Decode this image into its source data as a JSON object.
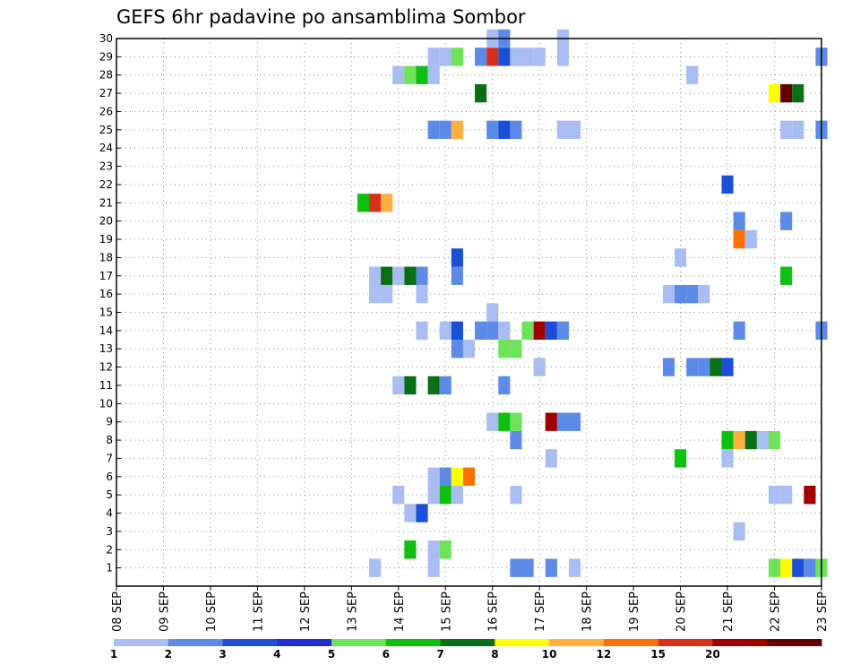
{
  "chart_data": {
    "type": "heatmap",
    "title": "GEFS 6hr padavine po ansamblima Sombor",
    "xlabel": "",
    "ylabel": "",
    "x_ticks": [
      "08 SEP",
      "09 SEP",
      "10 SEP",
      "11 SEP",
      "12 SEP",
      "13 SEP",
      "14 SEP",
      "15 SEP",
      "16 SEP",
      "17 SEP",
      "18 SEP",
      "19 SEP",
      "20 SEP",
      "21 SEP",
      "22 SEP",
      "23 SEP"
    ],
    "y_ticks": [
      "1",
      "2",
      "3",
      "4",
      "5",
      "6",
      "7",
      "8",
      "9",
      "10",
      "11",
      "12",
      "13",
      "14",
      "15",
      "16",
      "17",
      "18",
      "19",
      "20",
      "21",
      "22",
      "23",
      "24",
      "25",
      "26",
      "27",
      "28",
      "29",
      "30"
    ],
    "xlim": [
      0,
      60
    ],
    "ylim": [
      0,
      30
    ],
    "grid": true,
    "colorbar": {
      "levels": [
        1,
        2,
        3,
        4,
        5,
        6,
        7,
        8,
        10,
        12,
        15,
        20
      ],
      "tick_labels": [
        "1",
        "2",
        "3",
        "4",
        "5",
        "6",
        "7",
        "8",
        "10",
        "12",
        "15",
        "20"
      ],
      "colors": [
        "#aabdf3",
        "#5c8ae6",
        "#1a4fd6",
        "#1f2fd0",
        "#6ee35a",
        "#10c010",
        "#0a6e14",
        "#ffff00",
        "#ffb040",
        "#ff7000",
        "#d83018",
        "#a00000",
        "#600000"
      ]
    },
    "cells": [
      [
        27,
        29,
        "#aabdf3"
      ],
      [
        28,
        29,
        "#aabdf3"
      ],
      [
        29,
        29,
        "#6ee35a"
      ],
      [
        31,
        29,
        "#5c8ae6"
      ],
      [
        32,
        29,
        "#d83018"
      ],
      [
        33,
        29,
        "#1a4fd6"
      ],
      [
        34,
        29,
        "#aabdf3"
      ],
      [
        35,
        29,
        "#aabdf3"
      ],
      [
        36,
        29,
        "#aabdf3"
      ],
      [
        38,
        29,
        "#aabdf3"
      ],
      [
        60,
        29,
        "#5c8ae6"
      ],
      [
        32,
        30,
        "#aabdf3"
      ],
      [
        33,
        30,
        "#5c8ae6"
      ],
      [
        38,
        30,
        "#aabdf3"
      ],
      [
        24,
        28,
        "#aabdf3"
      ],
      [
        25,
        28,
        "#6ee35a"
      ],
      [
        26,
        28,
        "#10c010"
      ],
      [
        27,
        28,
        "#aabdf3"
      ],
      [
        49,
        28,
        "#aabdf3"
      ],
      [
        31,
        27,
        "#0a6e14"
      ],
      [
        56,
        27,
        "#ffff00"
      ],
      [
        57,
        27,
        "#600000"
      ],
      [
        58,
        27,
        "#0a6e14"
      ],
      [
        27,
        25,
        "#5c8ae6"
      ],
      [
        28,
        25,
        "#5c8ae6"
      ],
      [
        29,
        25,
        "#ffb040"
      ],
      [
        32,
        25,
        "#5c8ae6"
      ],
      [
        33,
        25,
        "#1a4fd6"
      ],
      [
        34,
        25,
        "#5c8ae6"
      ],
      [
        38,
        25,
        "#aabdf3"
      ],
      [
        39,
        25,
        "#aabdf3"
      ],
      [
        57,
        25,
        "#aabdf3"
      ],
      [
        58,
        25,
        "#aabdf3"
      ],
      [
        60,
        25,
        "#5c8ae6"
      ],
      [
        52,
        22,
        "#1a4fd6"
      ],
      [
        21,
        21,
        "#10c010"
      ],
      [
        22,
        21,
        "#d83018"
      ],
      [
        23,
        21,
        "#ffb040"
      ],
      [
        53,
        20,
        "#5c8ae6"
      ],
      [
        57,
        20,
        "#5c8ae6"
      ],
      [
        53,
        19,
        "#ff7000"
      ],
      [
        54,
        19,
        "#aabdf3"
      ],
      [
        29,
        18,
        "#1a4fd6"
      ],
      [
        48,
        18,
        "#aabdf3"
      ],
      [
        22,
        17,
        "#aabdf3"
      ],
      [
        23,
        17,
        "#0a6e14"
      ],
      [
        24,
        17,
        "#aabdf3"
      ],
      [
        25,
        17,
        "#0a6e14"
      ],
      [
        26,
        17,
        "#5c8ae6"
      ],
      [
        29,
        17,
        "#5c8ae6"
      ],
      [
        57,
        17,
        "#10c010"
      ],
      [
        22,
        16,
        "#aabdf3"
      ],
      [
        23,
        16,
        "#aabdf3"
      ],
      [
        26,
        16,
        "#aabdf3"
      ],
      [
        47,
        16,
        "#aabdf3"
      ],
      [
        48,
        16,
        "#5c8ae6"
      ],
      [
        49,
        16,
        "#5c8ae6"
      ],
      [
        50,
        16,
        "#aabdf3"
      ],
      [
        32,
        15,
        "#aabdf3"
      ],
      [
        26,
        14,
        "#aabdf3"
      ],
      [
        28,
        14,
        "#aabdf3"
      ],
      [
        29,
        14,
        "#1a4fd6"
      ],
      [
        31,
        14,
        "#5c8ae6"
      ],
      [
        32,
        14,
        "#5c8ae6"
      ],
      [
        33,
        14,
        "#aabdf3"
      ],
      [
        35,
        14,
        "#6ee35a"
      ],
      [
        36,
        14,
        "#a00000"
      ],
      [
        37,
        14,
        "#1a4fd6"
      ],
      [
        38,
        14,
        "#5c8ae6"
      ],
      [
        53,
        14,
        "#5c8ae6"
      ],
      [
        60,
        14,
        "#5c8ae6"
      ],
      [
        29,
        13,
        "#5c8ae6"
      ],
      [
        30,
        13,
        "#aabdf3"
      ],
      [
        33,
        13,
        "#6ee35a"
      ],
      [
        34,
        13,
        "#6ee35a"
      ],
      [
        36,
        12,
        "#aabdf3"
      ],
      [
        47,
        12,
        "#5c8ae6"
      ],
      [
        49,
        12,
        "#5c8ae6"
      ],
      [
        50,
        12,
        "#5c8ae6"
      ],
      [
        51,
        12,
        "#0a6e14"
      ],
      [
        52,
        12,
        "#1a4fd6"
      ],
      [
        24,
        11,
        "#aabdf3"
      ],
      [
        25,
        11,
        "#0a6e14"
      ],
      [
        27,
        11,
        "#0a6e14"
      ],
      [
        28,
        11,
        "#5c8ae6"
      ],
      [
        33,
        11,
        "#5c8ae6"
      ],
      [
        32,
        9,
        "#aabdf3"
      ],
      [
        33,
        9,
        "#10c010"
      ],
      [
        34,
        9,
        "#6ee35a"
      ],
      [
        37,
        9,
        "#a00000"
      ],
      [
        38,
        9,
        "#5c8ae6"
      ],
      [
        39,
        9,
        "#5c8ae6"
      ],
      [
        34,
        8,
        "#5c8ae6"
      ],
      [
        52,
        8,
        "#10c010"
      ],
      [
        53,
        8,
        "#ffb040"
      ],
      [
        54,
        8,
        "#0a6e14"
      ],
      [
        55,
        8,
        "#aabdf3"
      ],
      [
        56,
        8,
        "#6ee35a"
      ],
      [
        37,
        7,
        "#aabdf3"
      ],
      [
        48,
        7,
        "#10c010"
      ],
      [
        52,
        7,
        "#aabdf3"
      ],
      [
        27,
        6,
        "#aabdf3"
      ],
      [
        28,
        6,
        "#5c8ae6"
      ],
      [
        29,
        6,
        "#ffff00"
      ],
      [
        30,
        6,
        "#ff7000"
      ],
      [
        24,
        5,
        "#aabdf3"
      ],
      [
        27,
        5,
        "#aabdf3"
      ],
      [
        28,
        5,
        "#10c010"
      ],
      [
        29,
        5,
        "#aabdf3"
      ],
      [
        34,
        5,
        "#aabdf3"
      ],
      [
        56,
        5,
        "#aabdf3"
      ],
      [
        57,
        5,
        "#aabdf3"
      ],
      [
        59,
        5,
        "#a00000"
      ],
      [
        25,
        4,
        "#aabdf3"
      ],
      [
        26,
        4,
        "#1a4fd6"
      ],
      [
        53,
        3,
        "#aabdf3"
      ],
      [
        25,
        2,
        "#10c010"
      ],
      [
        27,
        2,
        "#aabdf3"
      ],
      [
        28,
        2,
        "#6ee35a"
      ],
      [
        22,
        1,
        "#aabdf3"
      ],
      [
        27,
        1,
        "#aabdf3"
      ],
      [
        34,
        1,
        "#5c8ae6"
      ],
      [
        35,
        1,
        "#5c8ae6"
      ],
      [
        37,
        1,
        "#5c8ae6"
      ],
      [
        39,
        1,
        "#aabdf3"
      ],
      [
        56,
        1,
        "#6ee35a"
      ],
      [
        57,
        1,
        "#ffff00"
      ],
      [
        58,
        1,
        "#1a4fd6"
      ],
      [
        59,
        1,
        "#5c8ae6"
      ],
      [
        60,
        1,
        "#6ee35a"
      ]
    ]
  }
}
